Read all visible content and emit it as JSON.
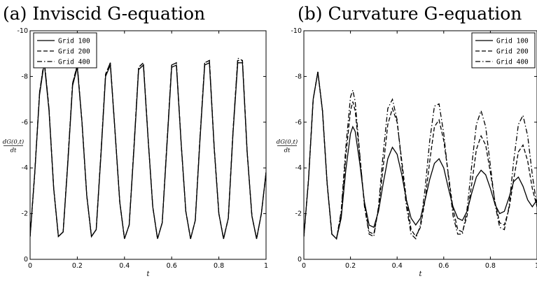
{
  "chart_data": [
    {
      "type": "line",
      "title": "(a) Inviscid G-equation",
      "xlabel": "t",
      "ylabel_num": "dG(0,t)",
      "ylabel_den": "dt",
      "xlim": [
        0,
        1
      ],
      "ylim": [
        0,
        -10
      ],
      "y_axis_reversed": true,
      "xticks": [
        0,
        0.2,
        0.4,
        0.6,
        0.8,
        1
      ],
      "xtick_labels": [
        "0",
        "0.2",
        "0.4",
        "0.6",
        "0.8",
        "1"
      ],
      "yticks": [
        0,
        -2,
        -4,
        -6,
        -8,
        -10
      ],
      "ytick_labels": [
        "0",
        "-2",
        "-4",
        "-6",
        "-8",
        "-10"
      ],
      "grid": false,
      "legend_position": "top-left",
      "series": [
        {
          "name": "Grid 100",
          "style": "solid",
          "x": [
            0,
            0.02,
            0.04,
            0.06,
            0.08,
            0.1,
            0.12,
            0.14,
            0.16,
            0.18,
            0.2,
            0.22,
            0.24,
            0.26,
            0.28,
            0.3,
            0.32,
            0.34,
            0.36,
            0.38,
            0.4,
            0.42,
            0.44,
            0.46,
            0.48,
            0.5,
            0.52,
            0.54,
            0.56,
            0.58,
            0.6,
            0.62,
            0.64,
            0.66,
            0.68,
            0.7,
            0.72,
            0.74,
            0.76,
            0.78,
            0.8,
            0.82,
            0.84,
            0.86,
            0.88,
            0.9,
            0.92,
            0.94,
            0.96,
            0.98,
            1
          ],
          "y": [
            -1,
            -3.8,
            -7.2,
            -8.6,
            -6.5,
            -3.1,
            -1,
            -1.2,
            -4.2,
            -7.6,
            -8.4,
            -6,
            -2.8,
            -1,
            -1.3,
            -4.5,
            -8,
            -8.5,
            -5.6,
            -2.5,
            -0.9,
            -1.5,
            -4.8,
            -8.3,
            -8.5,
            -5.3,
            -2.3,
            -0.9,
            -1.6,
            -5,
            -8.4,
            -8.5,
            -5.1,
            -2.1,
            -0.9,
            -1.7,
            -5.2,
            -8.5,
            -8.6,
            -4.9,
            -2,
            -0.9,
            -1.8,
            -5.5,
            -8.6,
            -8.6,
            -4.7,
            -1.9,
            -0.9,
            -2,
            -3.8
          ]
        },
        {
          "name": "Grid 200",
          "style": "dashed",
          "x": [
            0,
            0.02,
            0.04,
            0.06,
            0.08,
            0.1,
            0.12,
            0.14,
            0.16,
            0.18,
            0.2,
            0.22,
            0.24,
            0.26,
            0.28,
            0.3,
            0.32,
            0.34,
            0.36,
            0.38,
            0.4,
            0.42,
            0.44,
            0.46,
            0.48,
            0.5,
            0.52,
            0.54,
            0.56,
            0.58,
            0.6,
            0.62,
            0.64,
            0.66,
            0.68,
            0.7,
            0.72,
            0.74,
            0.76,
            0.78,
            0.8,
            0.82,
            0.84,
            0.86,
            0.88,
            0.9,
            0.92,
            0.94,
            0.96,
            0.98,
            1
          ],
          "y": [
            -1,
            -3.8,
            -7.3,
            -8.7,
            -6.6,
            -3.1,
            -1,
            -1.2,
            -4.3,
            -7.7,
            -8.5,
            -6,
            -2.8,
            -1,
            -1.3,
            -4.6,
            -8.1,
            -8.6,
            -5.6,
            -2.5,
            -0.9,
            -1.5,
            -4.9,
            -8.4,
            -8.6,
            -5.3,
            -2.3,
            -0.9,
            -1.6,
            -5.1,
            -8.5,
            -8.6,
            -5.1,
            -2.1,
            -0.9,
            -1.7,
            -5.3,
            -8.6,
            -8.7,
            -4.9,
            -2,
            -0.9,
            -1.8,
            -5.6,
            -8.7,
            -8.7,
            -4.7,
            -1.9,
            -0.9,
            -2,
            -3.8
          ]
        },
        {
          "name": "Grid 400",
          "style": "dashdot",
          "x": [
            0,
            0.02,
            0.04,
            0.06,
            0.08,
            0.1,
            0.12,
            0.14,
            0.16,
            0.18,
            0.2,
            0.22,
            0.24,
            0.26,
            0.28,
            0.3,
            0.32,
            0.34,
            0.36,
            0.38,
            0.4,
            0.42,
            0.44,
            0.46,
            0.48,
            0.5,
            0.52,
            0.54,
            0.56,
            0.58,
            0.6,
            0.62,
            0.64,
            0.66,
            0.68,
            0.7,
            0.72,
            0.74,
            0.76,
            0.78,
            0.8,
            0.82,
            0.84,
            0.86,
            0.88,
            0.9,
            0.92,
            0.94,
            0.96,
            0.98,
            1
          ],
          "y": [
            -1,
            -3.8,
            -7.3,
            -8.7,
            -6.6,
            -3.1,
            -1,
            -1.2,
            -4.3,
            -7.7,
            -8.5,
            -6,
            -2.8,
            -1,
            -1.3,
            -4.6,
            -8.1,
            -8.6,
            -5.6,
            -2.5,
            -0.9,
            -1.5,
            -4.9,
            -8.4,
            -8.6,
            -5.3,
            -2.3,
            -0.9,
            -1.6,
            -5.1,
            -8.5,
            -8.6,
            -5.1,
            -2.1,
            -0.9,
            -1.7,
            -5.3,
            -8.6,
            -8.7,
            -4.9,
            -2,
            -0.9,
            -1.8,
            -5.6,
            -8.8,
            -8.7,
            -4.7,
            -1.9,
            -0.9,
            -2,
            -3.8
          ]
        }
      ]
    },
    {
      "type": "line",
      "title": "(b) Curvature G-equation",
      "xlabel": "t",
      "ylabel_num": "dG(0,t)",
      "ylabel_den": "dt",
      "xlim": [
        0,
        1
      ],
      "ylim": [
        0,
        -10
      ],
      "y_axis_reversed": true,
      "xticks": [
        0,
        0.2,
        0.4,
        0.6,
        0.8,
        1
      ],
      "xtick_labels": [
        "0",
        "0.2",
        "0.4",
        "0.6",
        "0.8",
        "1"
      ],
      "yticks": [
        0,
        -2,
        -4,
        -6,
        -8,
        -10
      ],
      "ytick_labels": [
        "0",
        "-2",
        "-4",
        "-6",
        "-8",
        "-10"
      ],
      "grid": false,
      "legend_position": "top-right",
      "series": [
        {
          "name": "Grid 100",
          "style": "solid",
          "x": [
            0,
            0.02,
            0.04,
            0.06,
            0.08,
            0.1,
            0.12,
            0.14,
            0.16,
            0.18,
            0.2,
            0.21,
            0.22,
            0.24,
            0.26,
            0.28,
            0.3,
            0.32,
            0.34,
            0.36,
            0.38,
            0.4,
            0.42,
            0.44,
            0.46,
            0.48,
            0.5,
            0.52,
            0.54,
            0.56,
            0.58,
            0.6,
            0.62,
            0.64,
            0.66,
            0.68,
            0.7,
            0.72,
            0.74,
            0.76,
            0.78,
            0.8,
            0.82,
            0.84,
            0.86,
            0.88,
            0.9,
            0.92,
            0.94,
            0.96,
            0.98,
            1
          ],
          "y": [
            -1,
            -3.5,
            -7,
            -8.2,
            -6.5,
            -3.3,
            -1.1,
            -0.9,
            -1.8,
            -3.9,
            -5.5,
            -5.8,
            -5.6,
            -4.2,
            -2.5,
            -1.5,
            -1.4,
            -2.1,
            -3.3,
            -4.4,
            -4.9,
            -4.6,
            -3.7,
            -2.6,
            -1.8,
            -1.5,
            -1.8,
            -2.6,
            -3.5,
            -4.2,
            -4.4,
            -4,
            -3.1,
            -2.3,
            -1.8,
            -1.7,
            -2.1,
            -2.9,
            -3.6,
            -3.9,
            -3.7,
            -3.1,
            -2.4,
            -2,
            -2.1,
            -2.7,
            -3.4,
            -3.6,
            -3.2,
            -2.6,
            -2.3,
            -2.6
          ]
        },
        {
          "name": "Grid 200",
          "style": "dashed",
          "x": [
            0,
            0.02,
            0.04,
            0.06,
            0.08,
            0.1,
            0.12,
            0.14,
            0.16,
            0.18,
            0.2,
            0.21,
            0.22,
            0.24,
            0.26,
            0.28,
            0.3,
            0.32,
            0.34,
            0.36,
            0.38,
            0.4,
            0.42,
            0.44,
            0.46,
            0.48,
            0.5,
            0.52,
            0.54,
            0.56,
            0.58,
            0.6,
            0.62,
            0.64,
            0.66,
            0.68,
            0.7,
            0.72,
            0.74,
            0.76,
            0.78,
            0.8,
            0.82,
            0.84,
            0.86,
            0.88,
            0.9,
            0.92,
            0.94,
            0.96,
            0.98,
            1
          ],
          "y": [
            -1,
            -3.5,
            -7,
            -8.2,
            -6.5,
            -3.3,
            -1.1,
            -0.9,
            -2,
            -4.5,
            -6.5,
            -6.9,
            -6.5,
            -4.5,
            -2.4,
            -1.2,
            -1.1,
            -2.2,
            -4,
            -5.9,
            -6.6,
            -6,
            -4.3,
            -2.6,
            -1.3,
            -1,
            -1.4,
            -2.6,
            -4.3,
            -5.8,
            -6.1,
            -5.2,
            -3.7,
            -2.2,
            -1.3,
            -1.2,
            -1.9,
            -3.3,
            -4.8,
            -5.4,
            -5,
            -3.8,
            -2.5,
            -1.6,
            -1.5,
            -2.2,
            -3.5,
            -4.7,
            -5,
            -4.3,
            -3.1,
            -2.3
          ]
        },
        {
          "name": "Grid 400",
          "style": "dashdot",
          "x": [
            0,
            0.02,
            0.04,
            0.06,
            0.08,
            0.1,
            0.12,
            0.14,
            0.16,
            0.18,
            0.2,
            0.21,
            0.22,
            0.24,
            0.26,
            0.28,
            0.3,
            0.32,
            0.34,
            0.36,
            0.38,
            0.4,
            0.42,
            0.44,
            0.46,
            0.48,
            0.5,
            0.52,
            0.54,
            0.56,
            0.58,
            0.6,
            0.62,
            0.64,
            0.66,
            0.68,
            0.7,
            0.72,
            0.74,
            0.76,
            0.78,
            0.8,
            0.82,
            0.84,
            0.86,
            0.88,
            0.9,
            0.92,
            0.94,
            0.96,
            0.98,
            1
          ],
          "y": [
            -1,
            -3.5,
            -7,
            -8.2,
            -6.5,
            -3.3,
            -1.1,
            -0.9,
            -2.1,
            -4.9,
            -7.1,
            -7.4,
            -6.9,
            -4.6,
            -2.3,
            -1.1,
            -1,
            -2.3,
            -4.6,
            -6.6,
            -7,
            -6.1,
            -4.1,
            -2.3,
            -1.1,
            -0.9,
            -1.5,
            -3.1,
            -5.2,
            -6.7,
            -6.8,
            -5.5,
            -3.6,
            -1.9,
            -1.1,
            -1.1,
            -2.2,
            -4.1,
            -5.9,
            -6.5,
            -5.8,
            -4.1,
            -2.4,
            -1.4,
            -1.3,
            -2.3,
            -4.3,
            -5.9,
            -6.3,
            -5.4,
            -3.7,
            -2.3
          ]
        }
      ]
    }
  ]
}
